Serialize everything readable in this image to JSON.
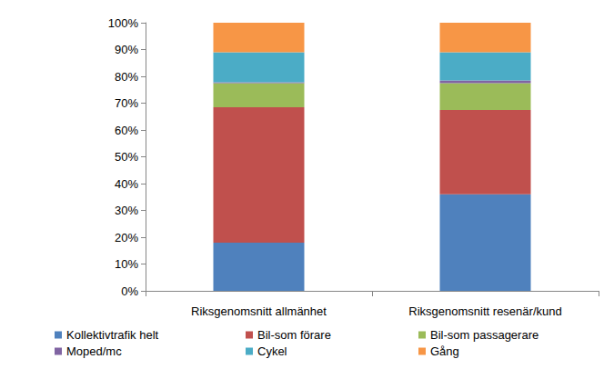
{
  "chart_data": {
    "type": "bar",
    "stacked": true,
    "grid": false,
    "legend": "bottom",
    "categories": [
      "Riksgenomsnitt allmänhet",
      "Riksgenomsnitt resenär/kund"
    ],
    "series": [
      {
        "name": "Kollektivtrafik helt",
        "color": "#4f81bd",
        "values": [
          18,
          36
        ]
      },
      {
        "name": "Bil-som förare",
        "color": "#c0504d",
        "values": [
          50.5,
          31.5
        ]
      },
      {
        "name": "Bil-som passagerare",
        "color": "#9bbb59",
        "values": [
          9,
          10
        ]
      },
      {
        "name": "Moped/mc",
        "color": "#8064a2",
        "values": [
          0.3,
          1
        ]
      },
      {
        "name": "Cykel",
        "color": "#4bacc6",
        "values": [
          11.2,
          10.5
        ]
      },
      {
        "name": "Gång",
        "color": "#f79646",
        "values": [
          11,
          11
        ]
      }
    ],
    "ylim": [
      0,
      100
    ],
    "yticks": [
      {
        "value": 0,
        "label": "0%"
      },
      {
        "value": 10,
        "label": "10%"
      },
      {
        "value": 20,
        "label": "20%"
      },
      {
        "value": 30,
        "label": "30%"
      },
      {
        "value": 40,
        "label": "40%"
      },
      {
        "value": 50,
        "label": "50%"
      },
      {
        "value": 60,
        "label": "60%"
      },
      {
        "value": 70,
        "label": "70%"
      },
      {
        "value": 80,
        "label": "80%"
      },
      {
        "value": 90,
        "label": "90%"
      },
      {
        "value": 100,
        "label": "100%"
      }
    ]
  }
}
